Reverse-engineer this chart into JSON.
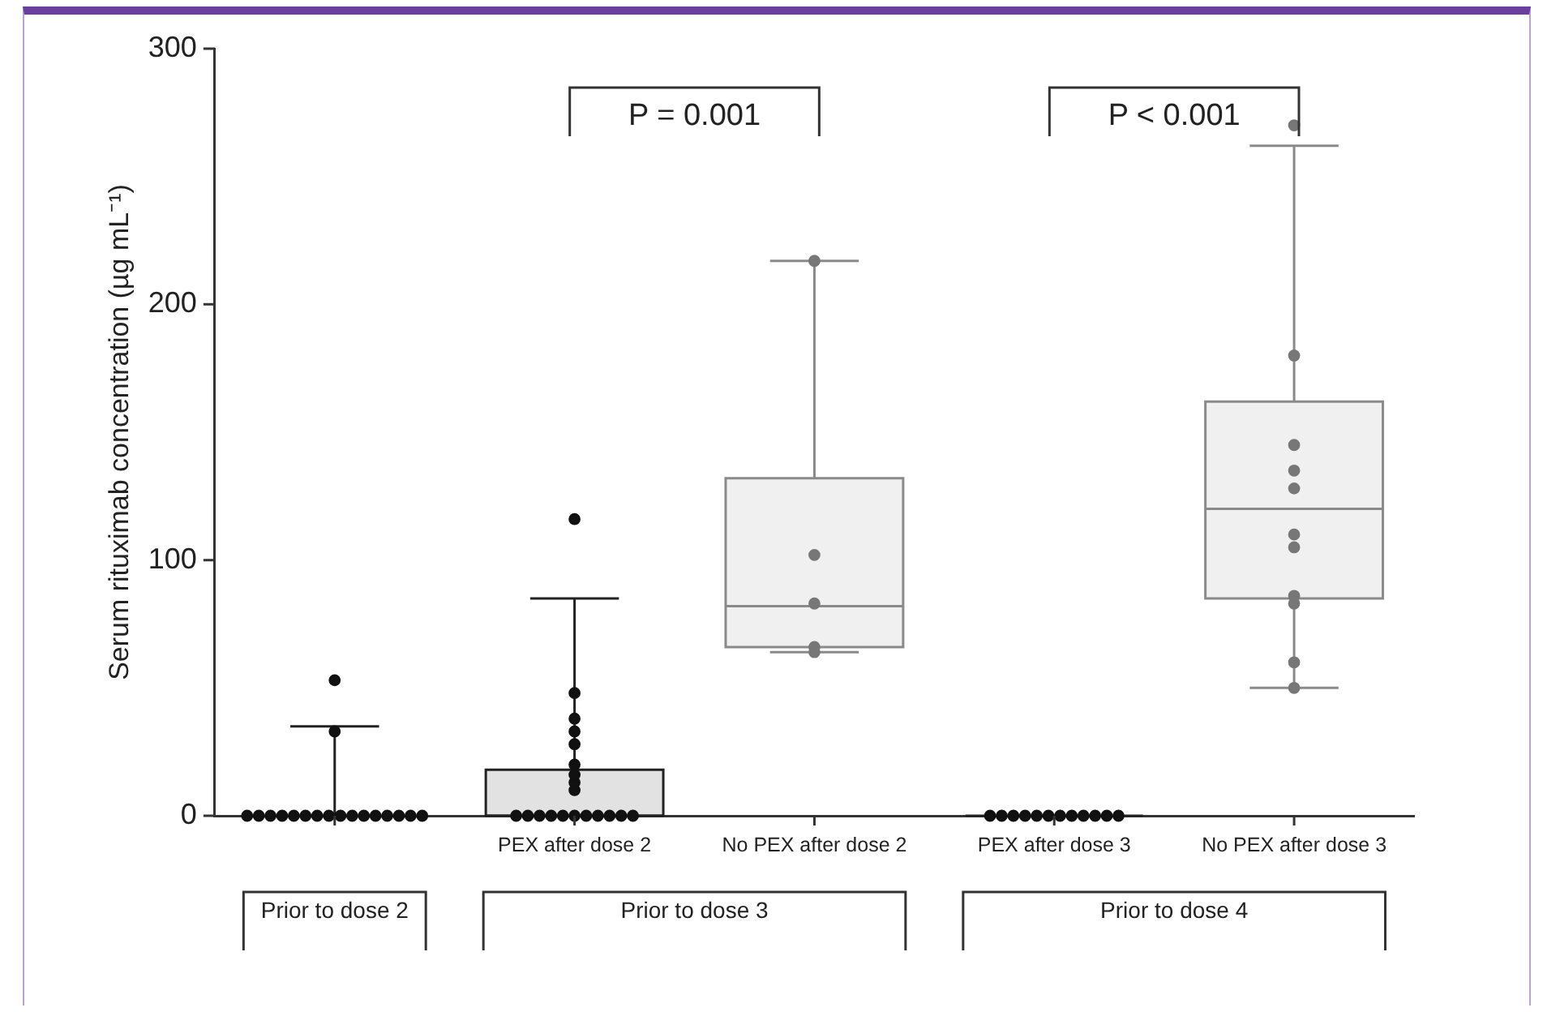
{
  "chart_data": {
    "type": "box",
    "ylabel": "Serum rituximab concentration (µg mL⁻¹)",
    "categories": [
      null,
      "PEX after dose 2",
      "No PEX after dose 2",
      "PEX after dose 3",
      "No PEX after dose 3"
    ],
    "boxes": [
      {
        "low": 0,
        "q1": 0,
        "median": 0,
        "q3": 0,
        "high": 35
      },
      {
        "low": 0,
        "q1": 0,
        "median": 0,
        "q3": 18,
        "high": 85
      },
      {
        "low": 64,
        "q1": 66,
        "median": 82,
        "q3": 132,
        "high": 217
      },
      {
        "low": 0,
        "q1": 0,
        "median": 0,
        "q3": 0,
        "high": 0
      },
      {
        "low": 50,
        "q1": 85,
        "median": 120,
        "q3": 162,
        "high": 262
      }
    ],
    "colors": [
      "#222222",
      "#222222",
      "#8a8a8a",
      "#222222",
      "#8a8a8a"
    ],
    "series": [
      {
        "type": "scatter",
        "color": "#111111",
        "x": [
          null,
          null,
          null,
          null,
          null,
          null,
          null,
          null,
          null,
          null,
          null,
          null,
          null,
          null,
          null,
          null,
          null,
          null,
          "PEX after dose 2",
          "PEX after dose 2",
          "PEX after dose 2",
          "PEX after dose 2",
          "PEX after dose 2",
          "PEX after dose 2",
          "PEX after dose 2",
          "PEX after dose 2",
          "PEX after dose 2",
          "PEX after dose 2",
          "PEX after dose 2",
          "PEX after dose 2",
          "PEX after dose 2",
          "PEX after dose 2",
          "PEX after dose 2",
          "PEX after dose 2",
          "PEX after dose 2",
          "PEX after dose 2",
          "PEX after dose 2",
          "PEX after dose 2",
          "PEX after dose 3",
          "PEX after dose 3",
          "PEX after dose 3",
          "PEX after dose 3",
          "PEX after dose 3",
          "PEX after dose 3",
          "PEX after dose 3",
          "PEX after dose 3",
          "PEX after dose 3",
          "PEX after dose 3",
          "PEX after dose 3",
          "PEX after dose 3"
        ],
        "values": [
          0,
          0,
          0,
          0,
          0,
          0,
          0,
          0,
          0,
          0,
          0,
          0,
          0,
          0,
          0,
          0,
          33,
          53,
          0,
          0,
          0,
          0,
          0,
          0,
          0,
          0,
          0,
          0,
          0,
          10,
          13,
          16,
          20,
          28,
          33,
          38,
          48,
          116,
          0,
          0,
          0,
          0,
          0,
          0,
          0,
          0,
          0,
          0,
          0,
          0
        ]
      },
      {
        "type": "scatter",
        "color": "#777777",
        "x": [
          "No PEX after dose 2",
          "No PEX after dose 2",
          "No PEX after dose 2",
          "No PEX after dose 2",
          "No PEX after dose 2",
          "No PEX after dose 3",
          "No PEX after dose 3",
          "No PEX after dose 3",
          "No PEX after dose 3",
          "No PEX after dose 3",
          "No PEX after dose 3",
          "No PEX after dose 3",
          "No PEX after dose 3",
          "No PEX after dose 3",
          "No PEX after dose 3",
          "No PEX after dose 3"
        ],
        "values": [
          64,
          66,
          83,
          102,
          217,
          50,
          60,
          83,
          86,
          105,
          110,
          128,
          135,
          145,
          180,
          270
        ]
      }
    ],
    "ylim": [
      0,
      300
    ],
    "yticks": [
      0,
      100,
      200,
      300
    ],
    "grid": false,
    "marker": "circle",
    "annotations": [
      "P = 0.001",
      "P < 0.001",
      "Prior to dose 2",
      "Prior to dose 3",
      "Prior to dose 4"
    ]
  }
}
